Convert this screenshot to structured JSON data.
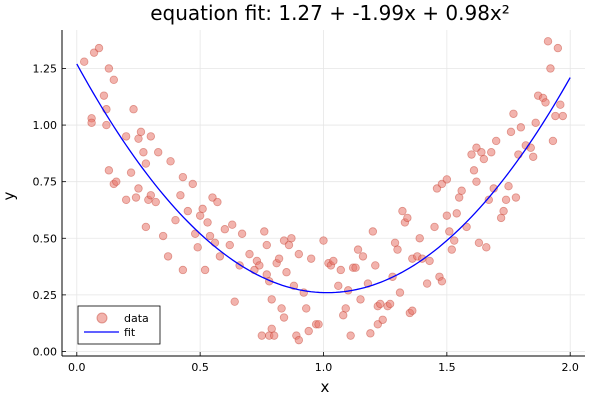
{
  "chart_data": {
    "type": "scatter",
    "title": "equation fit: 1.27 + -1.99x + 0.98x²",
    "xlabel": "x",
    "ylabel": "y",
    "xlim": [
      -0.06,
      2.06
    ],
    "ylim": [
      -0.02,
      1.42
    ],
    "x_ticks": [
      0.0,
      0.5,
      1.0,
      1.5,
      2.0
    ],
    "x_tick_labels": [
      "0.0",
      "0.5",
      "1.0",
      "1.5",
      "2.0"
    ],
    "y_ticks": [
      0.0,
      0.25,
      0.5,
      0.75,
      1.0,
      1.25
    ],
    "y_tick_labels": [
      "0.00",
      "0.25",
      "0.50",
      "0.75",
      "1.00",
      "1.25"
    ],
    "grid": true,
    "legend_position": "bottom-left",
    "colors": {
      "data": "#e8756a",
      "data_stroke": "#c0392b",
      "fit": "#0000ff"
    },
    "series": [
      {
        "name": "data",
        "kind": "scatter",
        "points": [
          [
            0.03,
            1.28
          ],
          [
            0.06,
            1.03
          ],
          [
            0.06,
            1.01
          ],
          [
            0.07,
            1.32
          ],
          [
            0.09,
            1.34
          ],
          [
            0.11,
            1.13
          ],
          [
            0.12,
            1.07
          ],
          [
            0.12,
            1.0
          ],
          [
            0.13,
            0.8
          ],
          [
            0.13,
            1.25
          ],
          [
            0.15,
            1.2
          ],
          [
            0.15,
            0.74
          ],
          [
            0.16,
            0.75
          ],
          [
            0.2,
            0.95
          ],
          [
            0.2,
            0.67
          ],
          [
            0.22,
            0.79
          ],
          [
            0.23,
            1.07
          ],
          [
            0.24,
            0.68
          ],
          [
            0.25,
            0.94
          ],
          [
            0.25,
            0.72
          ],
          [
            0.26,
            0.97
          ],
          [
            0.27,
            0.88
          ],
          [
            0.28,
            0.55
          ],
          [
            0.28,
            0.83
          ],
          [
            0.29,
            0.67
          ],
          [
            0.3,
            0.69
          ],
          [
            0.3,
            0.95
          ],
          [
            0.32,
            0.66
          ],
          [
            0.33,
            0.88
          ],
          [
            0.35,
            0.51
          ],
          [
            0.37,
            0.42
          ],
          [
            0.38,
            0.84
          ],
          [
            0.4,
            0.58
          ],
          [
            0.42,
            0.69
          ],
          [
            0.43,
            0.36
          ],
          [
            0.43,
            0.77
          ],
          [
            0.45,
            0.62
          ],
          [
            0.47,
            0.74
          ],
          [
            0.48,
            0.52
          ],
          [
            0.49,
            0.46
          ],
          [
            0.5,
            0.6
          ],
          [
            0.51,
            0.63
          ],
          [
            0.52,
            0.36
          ],
          [
            0.53,
            0.57
          ],
          [
            0.54,
            0.51
          ],
          [
            0.55,
            0.68
          ],
          [
            0.56,
            0.48
          ],
          [
            0.57,
            0.66
          ],
          [
            0.58,
            0.42
          ],
          [
            0.6,
            0.54
          ],
          [
            0.62,
            0.47
          ],
          [
            0.63,
            0.56
          ],
          [
            0.64,
            0.22
          ],
          [
            0.66,
            0.38
          ],
          [
            0.67,
            0.52
          ],
          [
            0.7,
            0.43
          ],
          [
            0.72,
            0.36
          ],
          [
            0.73,
            0.4
          ],
          [
            0.74,
            0.38
          ],
          [
            0.75,
            0.07
          ],
          [
            0.76,
            0.53
          ],
          [
            0.77,
            0.34
          ],
          [
            0.77,
            0.47
          ],
          [
            0.78,
            0.31
          ],
          [
            0.78,
            0.07
          ],
          [
            0.79,
            0.1
          ],
          [
            0.79,
            0.23
          ],
          [
            0.8,
            0.07
          ],
          [
            0.81,
            0.39
          ],
          [
            0.82,
            0.41
          ],
          [
            0.83,
            0.19
          ],
          [
            0.84,
            0.15
          ],
          [
            0.84,
            0.49
          ],
          [
            0.85,
            0.35
          ],
          [
            0.86,
            0.47
          ],
          [
            0.87,
            0.5
          ],
          [
            0.88,
            0.29
          ],
          [
            0.89,
            0.07
          ],
          [
            0.9,
            0.05
          ],
          [
            0.9,
            0.43
          ],
          [
            0.92,
            0.26
          ],
          [
            0.93,
            0.19
          ],
          [
            0.94,
            0.09
          ],
          [
            0.95,
            0.41
          ],
          [
            0.97,
            0.12
          ],
          [
            0.98,
            0.12
          ],
          [
            1.0,
            0.49
          ],
          [
            1.02,
            0.39
          ],
          [
            1.03,
            0.38
          ],
          [
            1.04,
            0.4
          ],
          [
            1.06,
            0.29
          ],
          [
            1.07,
            0.36
          ],
          [
            1.08,
            0.16
          ],
          [
            1.09,
            0.19
          ],
          [
            1.1,
            0.27
          ],
          [
            1.11,
            0.07
          ],
          [
            1.12,
            0.37
          ],
          [
            1.13,
            0.37
          ],
          [
            1.14,
            0.45
          ],
          [
            1.15,
            0.23
          ],
          [
            1.16,
            0.42
          ],
          [
            1.18,
            0.3
          ],
          [
            1.19,
            0.08
          ],
          [
            1.2,
            0.53
          ],
          [
            1.21,
            0.38
          ],
          [
            1.22,
            0.12
          ],
          [
            1.22,
            0.2
          ],
          [
            1.23,
            0.21
          ],
          [
            1.24,
            0.14
          ],
          [
            1.26,
            0.2
          ],
          [
            1.27,
            0.21
          ],
          [
            1.28,
            0.33
          ],
          [
            1.29,
            0.48
          ],
          [
            1.3,
            0.45
          ],
          [
            1.31,
            0.26
          ],
          [
            1.32,
            0.62
          ],
          [
            1.33,
            0.57
          ],
          [
            1.34,
            0.59
          ],
          [
            1.35,
            0.17
          ],
          [
            1.36,
            0.18
          ],
          [
            1.36,
            0.41
          ],
          [
            1.38,
            0.42
          ],
          [
            1.39,
            0.5
          ],
          [
            1.4,
            0.41
          ],
          [
            1.42,
            0.3
          ],
          [
            1.43,
            0.4
          ],
          [
            1.45,
            0.55
          ],
          [
            1.46,
            0.72
          ],
          [
            1.47,
            0.33
          ],
          [
            1.48,
            0.31
          ],
          [
            1.48,
            0.74
          ],
          [
            1.5,
            0.6
          ],
          [
            1.5,
            0.76
          ],
          [
            1.51,
            0.53
          ],
          [
            1.52,
            0.45
          ],
          [
            1.53,
            0.49
          ],
          [
            1.54,
            0.61
          ],
          [
            1.55,
            0.68
          ],
          [
            1.56,
            0.71
          ],
          [
            1.58,
            0.55
          ],
          [
            1.6,
            0.87
          ],
          [
            1.61,
            0.8
          ],
          [
            1.62,
            0.9
          ],
          [
            1.62,
            0.75
          ],
          [
            1.63,
            0.48
          ],
          [
            1.64,
            0.88
          ],
          [
            1.65,
            0.85
          ],
          [
            1.66,
            0.46
          ],
          [
            1.67,
            0.67
          ],
          [
            1.68,
            0.88
          ],
          [
            1.69,
            0.72
          ],
          [
            1.7,
            0.93
          ],
          [
            1.72,
            0.59
          ],
          [
            1.73,
            0.62
          ],
          [
            1.74,
            0.67
          ],
          [
            1.75,
            0.73
          ],
          [
            1.76,
            0.97
          ],
          [
            1.77,
            1.05
          ],
          [
            1.78,
            0.68
          ],
          [
            1.79,
            0.87
          ],
          [
            1.8,
            0.99
          ],
          [
            1.82,
            0.91
          ],
          [
            1.84,
            0.9
          ],
          [
            1.85,
            0.86
          ],
          [
            1.86,
            1.01
          ],
          [
            1.87,
            1.13
          ],
          [
            1.89,
            1.12
          ],
          [
            1.9,
            1.1
          ],
          [
            1.91,
            1.37
          ],
          [
            1.92,
            1.25
          ],
          [
            1.93,
            0.93
          ],
          [
            1.94,
            1.04
          ],
          [
            1.95,
            1.34
          ],
          [
            1.96,
            1.09
          ],
          [
            1.97,
            1.04
          ]
        ]
      },
      {
        "name": "fit",
        "kind": "line",
        "coefficients": [
          1.27,
          -1.99,
          0.98
        ],
        "x_range": [
          0.0,
          2.0
        ]
      }
    ]
  }
}
